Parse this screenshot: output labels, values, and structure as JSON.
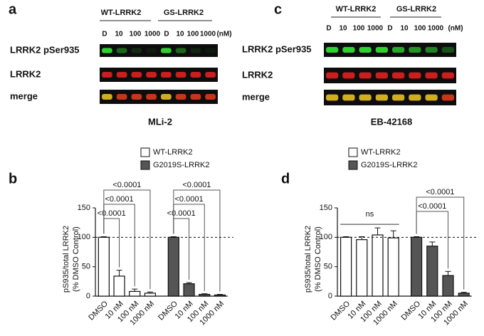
{
  "blots": [
    {
      "panel": "a",
      "groups": [
        "WT-LRRK2",
        "GS-LRRK2"
      ],
      "lanes": [
        "D",
        "10",
        "100",
        "1000"
      ],
      "unit": "(nM)",
      "rows": [
        "LRRK2 pSer935",
        "LRRK2",
        "merge"
      ],
      "compound": "MLi-2"
    },
    {
      "panel": "c",
      "groups": [
        "WT-LRRK2",
        "GS-LRRK2"
      ],
      "lanes": [
        "D",
        "10",
        "100",
        "1000"
      ],
      "unit": "(nM)",
      "rows": [
        "LRRK2 pSer935",
        "LRRK2",
        "merge"
      ],
      "compound": "EB-42168"
    }
  ],
  "chart_data": [
    {
      "type": "bar",
      "panel": "b",
      "ylabel": [
        "pS935/total LRRK2",
        "(% DMSO Control)"
      ],
      "categories": [
        "DMSO",
        "10 nM",
        "100 nM",
        "1000 nM"
      ],
      "series": [
        {
          "name": "WT-LRRK2",
          "color": "#ffffff",
          "values": [
            100,
            34,
            8,
            5
          ],
          "errors": [
            1,
            10,
            4,
            2
          ],
          "comparisons": [
            {
              "text": "<0.0001",
              "vs": "10 nM"
            },
            {
              "text": "<0.0001",
              "vs": "100 nM"
            },
            {
              "text": "<0.0001",
              "vs": "1000 nM"
            }
          ]
        },
        {
          "name": "G2019S-LRRK2",
          "color": "#555555",
          "values": [
            100,
            21,
            3,
            2
          ],
          "errors": [
            1,
            2,
            1,
            1
          ],
          "comparisons": [
            {
              "text": "<0.0001",
              "vs": "10 nM"
            },
            {
              "text": "<0.0001",
              "vs": "100 nM"
            },
            {
              "text": "<0.0001",
              "vs": "1000 nM"
            }
          ]
        }
      ],
      "ylim": [
        0,
        150
      ],
      "yticks": [
        0,
        50,
        100,
        150
      ],
      "reference_line": 100,
      "legend": "top"
    },
    {
      "type": "bar",
      "panel": "d",
      "ylabel": [
        "pS935/total LRRK2",
        "(% DMSO Control)"
      ],
      "categories": [
        "DMSO",
        "10 nM",
        "100 nM",
        "1000 nM"
      ],
      "series": [
        {
          "name": "WT-LRRK2",
          "color": "#ffffff",
          "values": [
            100,
            96,
            104,
            99
          ],
          "errors": [
            1,
            5,
            12,
            12
          ],
          "comparisons": [
            {
              "text": "ns",
              "vs": "1000 nM",
              "style": "line"
            }
          ]
        },
        {
          "name": "G2019S-LRRK2",
          "color": "#555555",
          "values": [
            100,
            85,
            35,
            5
          ],
          "errors": [
            1,
            7,
            7,
            1.5
          ],
          "comparisons": [
            {
              "text": "<0.0001",
              "vs": "100 nM"
            },
            {
              "text": "<0.0001",
              "vs": "1000 nM"
            }
          ]
        }
      ],
      "ylim": [
        0,
        150
      ],
      "yticks": [
        0,
        50,
        100,
        150
      ],
      "reference_line": 100,
      "legend": "top"
    }
  ]
}
